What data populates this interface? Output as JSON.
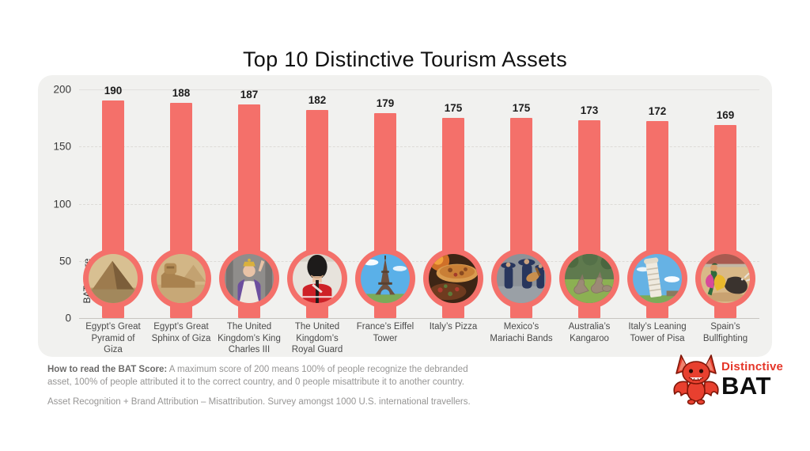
{
  "title": "Top 10 Distinctive Tourism Assets",
  "chart_data": {
    "type": "bar",
    "title": "Top 10 Distinctive Tourism Assets",
    "xlabel": "",
    "ylabel": "BAT Score",
    "ylim": [
      0,
      200
    ],
    "yticks": [
      0,
      50,
      100,
      150,
      200
    ],
    "grid": "horizontal-dashed",
    "legend": "none",
    "bar_color": "#F4706A",
    "panel_background": "#F1F1EF",
    "categories": [
      "Egypt’s Great Pyramid of Giza",
      "Egypt’s Great Sphinx of Giza",
      "The United Kingdom’s King Charles III",
      "The United Kingdom’s Royal Guard",
      "France’s Eiffel Tower",
      "Italy’s Pizza",
      "Mexico’s Mariachi Bands",
      "Australia’s Kangaroo",
      "Italy’s Leaning Tower of Pisa",
      "Spain’s Bullfighting"
    ],
    "values": [
      190,
      188,
      187,
      182,
      179,
      175,
      175,
      173,
      172,
      169
    ],
    "icons": [
      "pyramid-icon",
      "sphinx-icon",
      "king-charles-icon",
      "royal-guard-icon",
      "eiffel-tower-icon",
      "pizza-icon",
      "mariachi-icon",
      "kangaroo-icon",
      "pisa-tower-icon",
      "bullfighting-icon"
    ]
  },
  "footer": {
    "how_to_bold": "How to read the BAT Score:",
    "how_to_rest": " A maximum score of 200 means 100% of people recognize the debranded asset, 100% of people attributed it to the correct country, and 0 people misattribute it to another country.",
    "formula": "Asset Recognition + Brand Attribution – Misattribution. Survey amongst 1000 U.S. international travellers."
  },
  "logo": {
    "top": "Distinctive",
    "bottom": "BAT",
    "red": "#E53528",
    "mascot": "bat-mascot-icon"
  }
}
